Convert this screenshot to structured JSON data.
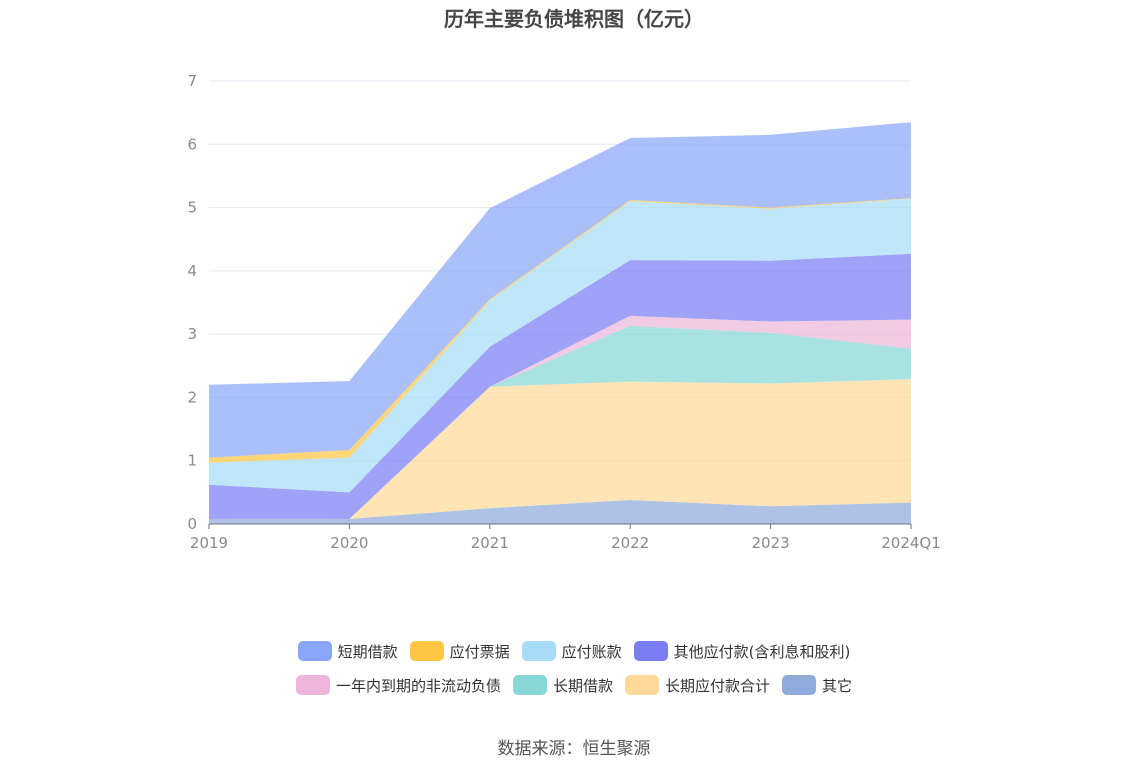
{
  "chart_data": {
    "type": "area",
    "title": "历年主要负债堆积图（亿元）",
    "categories": [
      "2019",
      "2020",
      "2021",
      "2022",
      "2023",
      "2024Q1"
    ],
    "ylim": [
      0,
      7
    ],
    "yticks": [
      "0",
      "1",
      "2",
      "3",
      "4",
      "5",
      "6",
      "7"
    ],
    "grid": true,
    "stacked": true,
    "legend_position": "bottom",
    "series": [
      {
        "name": "其它",
        "color": "#8fabdc",
        "values": [
          0.08,
          0.08,
          0.25,
          0.38,
          0.28,
          0.34
        ]
      },
      {
        "name": "长期应付款合计",
        "color": "#ffd99a",
        "values": [
          0.0,
          0.0,
          1.92,
          1.87,
          1.94,
          1.95
        ]
      },
      {
        "name": "长期借款",
        "color": "#86d7d6",
        "values": [
          0.0,
          0.0,
          0.0,
          0.88,
          0.8,
          0.48
        ]
      },
      {
        "name": "一年内到期的非流动负债",
        "color": "#ebb6da",
        "values": [
          0.0,
          0.0,
          0.0,
          0.16,
          0.18,
          0.46
        ]
      },
      {
        "name": "其他应付款(含利息和股利)",
        "color": "#7a7ef2",
        "values": [
          0.54,
          0.42,
          0.63,
          0.88,
          0.96,
          1.04
        ]
      },
      {
        "name": "应付账款",
        "color": "#a8dcf6",
        "values": [
          0.35,
          0.55,
          0.73,
          0.93,
          0.82,
          0.87
        ]
      },
      {
        "name": "应付票据",
        "color": "#ffc642",
        "values": [
          0.08,
          0.12,
          0.02,
          0.02,
          0.02,
          0.01
        ]
      },
      {
        "name": "短期借款",
        "color": "#8aa6fa",
        "values": [
          1.15,
          1.09,
          1.44,
          0.98,
          1.15,
          1.2
        ]
      }
    ]
  },
  "legend": {
    "row1": [
      {
        "label": "短期借款",
        "color": "#8aa6fa"
      },
      {
        "label": "应付票据",
        "color": "#ffc642"
      },
      {
        "label": "应付账款",
        "color": "#a8dcf6"
      },
      {
        "label": "其他应付款(含利息和股利)",
        "color": "#7a7ef2"
      }
    ],
    "row2": [
      {
        "label": "一年内到期的非流动负债",
        "color": "#ebb6da"
      },
      {
        "label": "长期借款",
        "color": "#86d7d6"
      },
      {
        "label": "长期应付款合计",
        "color": "#ffd99a"
      },
      {
        "label": "其它",
        "color": "#8fabdc"
      }
    ]
  },
  "source_text": "数据来源：恒生聚源"
}
